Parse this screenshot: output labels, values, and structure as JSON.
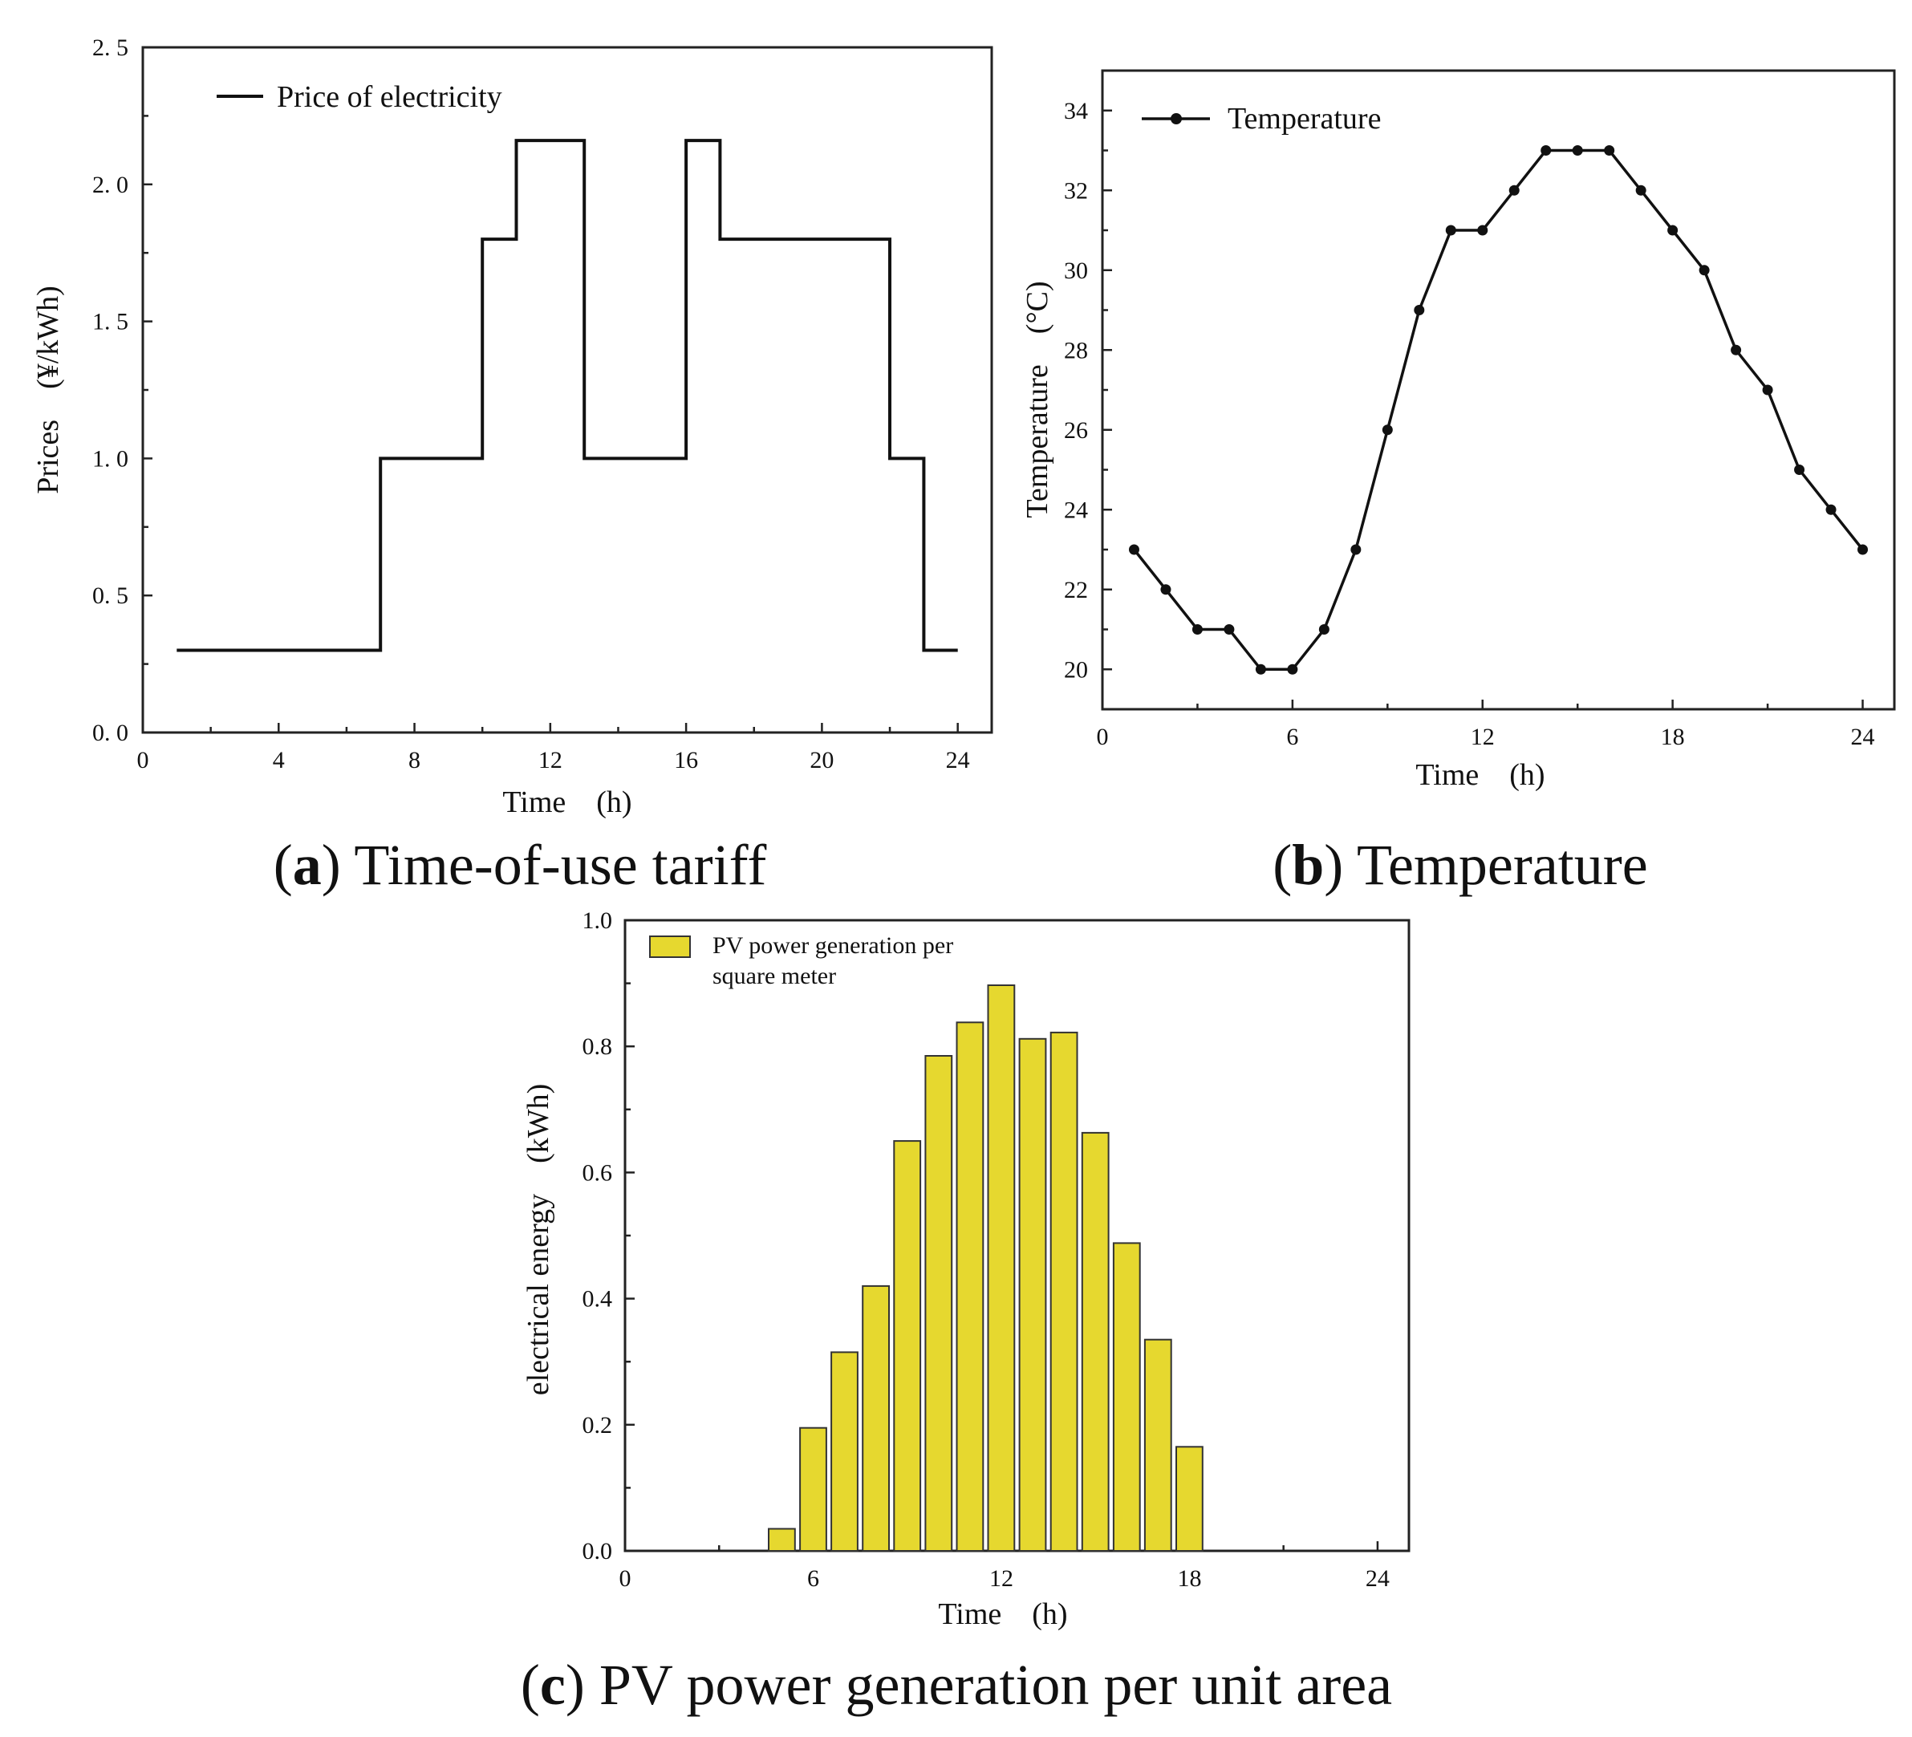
{
  "chart_data": [
    {
      "id": "a",
      "type": "line",
      "step": true,
      "caption_letter": "a",
      "caption_text": "Time-of-use tariff",
      "xlabel": "Time　(h)",
      "ylabel": "Prices　(¥/kWh)",
      "xlim": [
        0,
        25
      ],
      "ylim": [
        0,
        2.5
      ],
      "xticks": [
        0,
        4,
        8,
        12,
        16,
        20,
        24
      ],
      "xtick_labels": [
        "0",
        "4",
        "8",
        "12",
        "16",
        "20",
        "24"
      ],
      "yticks": [
        0,
        0.5,
        1.0,
        1.5,
        2.0,
        2.5
      ],
      "ytick_labels": [
        "0. 0",
        "0. 5",
        "1. 0",
        "1. 5",
        "2. 0",
        "2. 5"
      ],
      "legend_position": "top-left",
      "series": [
        {
          "name": "Price of electricity",
          "color": "#111111",
          "x": [
            1,
            7,
            7,
            10,
            10,
            11,
            11,
            13,
            13,
            16,
            16,
            17,
            17,
            22,
            22,
            23,
            23,
            24
          ],
          "y": [
            0.3,
            0.3,
            1.0,
            1.0,
            1.8,
            1.8,
            2.16,
            2.16,
            1.0,
            1.0,
            2.16,
            2.16,
            1.8,
            1.8,
            1.0,
            1.0,
            0.3,
            0.3
          ]
        }
      ]
    },
    {
      "id": "b",
      "type": "line",
      "caption_letter": "b",
      "caption_text": "Temperature",
      "xlabel": "Time　(h)",
      "ylabel": "Temperature　(°C)",
      "xlim": [
        0,
        25
      ],
      "ylim": [
        19,
        35
      ],
      "xticks": [
        0,
        6,
        12,
        18,
        24
      ],
      "xtick_labels": [
        "0",
        "6",
        "12",
        "18",
        "24"
      ],
      "yticks": [
        20,
        22,
        24,
        26,
        28,
        30,
        32,
        34
      ],
      "ytick_labels": [
        "20",
        "22",
        "24",
        "26",
        "28",
        "30",
        "32",
        "34"
      ],
      "legend_position": "top-left",
      "series": [
        {
          "name": "Temperature",
          "color": "#111111",
          "markers": true,
          "x": [
            1,
            2,
            3,
            4,
            5,
            6,
            7,
            8,
            9,
            10,
            11,
            12,
            13,
            14,
            15,
            16,
            17,
            18,
            19,
            20,
            21,
            22,
            23,
            24
          ],
          "y": [
            23,
            22,
            21,
            21,
            20,
            20,
            21,
            23,
            26,
            29,
            31,
            31,
            32,
            33,
            33,
            33,
            32,
            31,
            30,
            28,
            27,
            25,
            24,
            23
          ]
        }
      ]
    },
    {
      "id": "c",
      "type": "bar",
      "caption_letter": "c",
      "caption_text": "PV power generation per unit area",
      "xlabel": "Time　(h)",
      "ylabel": "electrical energy　(kWh)",
      "xlim": [
        0,
        25
      ],
      "ylim": [
        0,
        1.0
      ],
      "xticks": [
        0,
        6,
        12,
        18,
        24
      ],
      "xtick_labels": [
        "0",
        "6",
        "12",
        "18",
        "24"
      ],
      "yticks": [
        0,
        0.2,
        0.4,
        0.6,
        0.8,
        1.0
      ],
      "ytick_labels": [
        "0.0",
        "0.2",
        "0.4",
        "0.6",
        "0.8",
        "1.0"
      ],
      "legend_position": "top-left",
      "legend_lines": [
        "PV power generation per",
        "square meter"
      ],
      "series": [
        {
          "name": "PV power generation per square meter",
          "color": "#e6d82f",
          "edge_color": "#333333",
          "x": [
            5,
            6,
            7,
            8,
            9,
            10,
            11,
            12,
            13,
            14,
            15,
            16,
            17,
            18
          ],
          "values": [
            0.035,
            0.195,
            0.315,
            0.42,
            0.65,
            0.785,
            0.838,
            0.897,
            0.812,
            0.822,
            0.663,
            0.488,
            0.335,
            0.165
          ]
        }
      ]
    }
  ]
}
